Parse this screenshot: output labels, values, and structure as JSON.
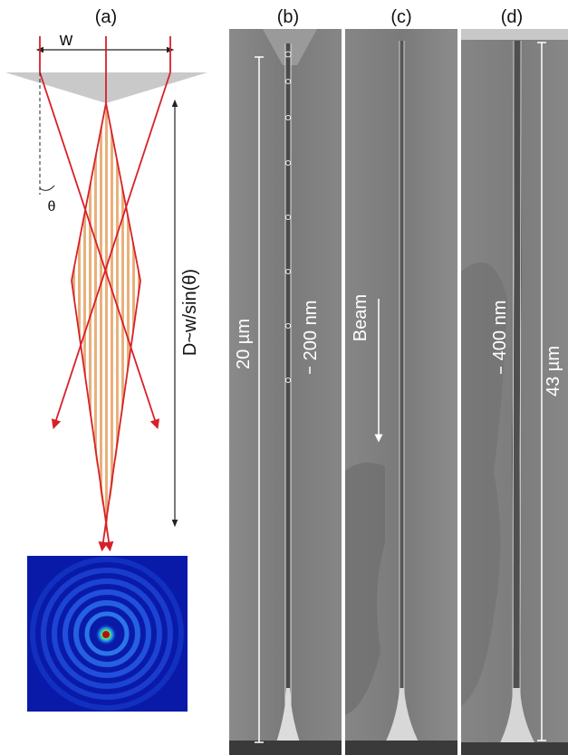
{
  "panels": {
    "a": {
      "label": "(a)",
      "aperture_label": "w",
      "angle_label": "θ",
      "distance_label": "D~w/sin(θ)"
    },
    "b": {
      "label": "(b)",
      "length_label": "20 µm",
      "width_label": "200 nm"
    },
    "c": {
      "label": "(c)",
      "beam_label": "Beam"
    },
    "d": {
      "label": "(d)",
      "width_label": "400 nm",
      "length_label": "43 µm"
    }
  },
  "colors": {
    "ray": "#d8202a",
    "interference_fringe": "#e8b07a",
    "axicon": "#c9c9c9",
    "sem_background": "#7b7b7b",
    "spot_background": "#0a1aa8"
  }
}
